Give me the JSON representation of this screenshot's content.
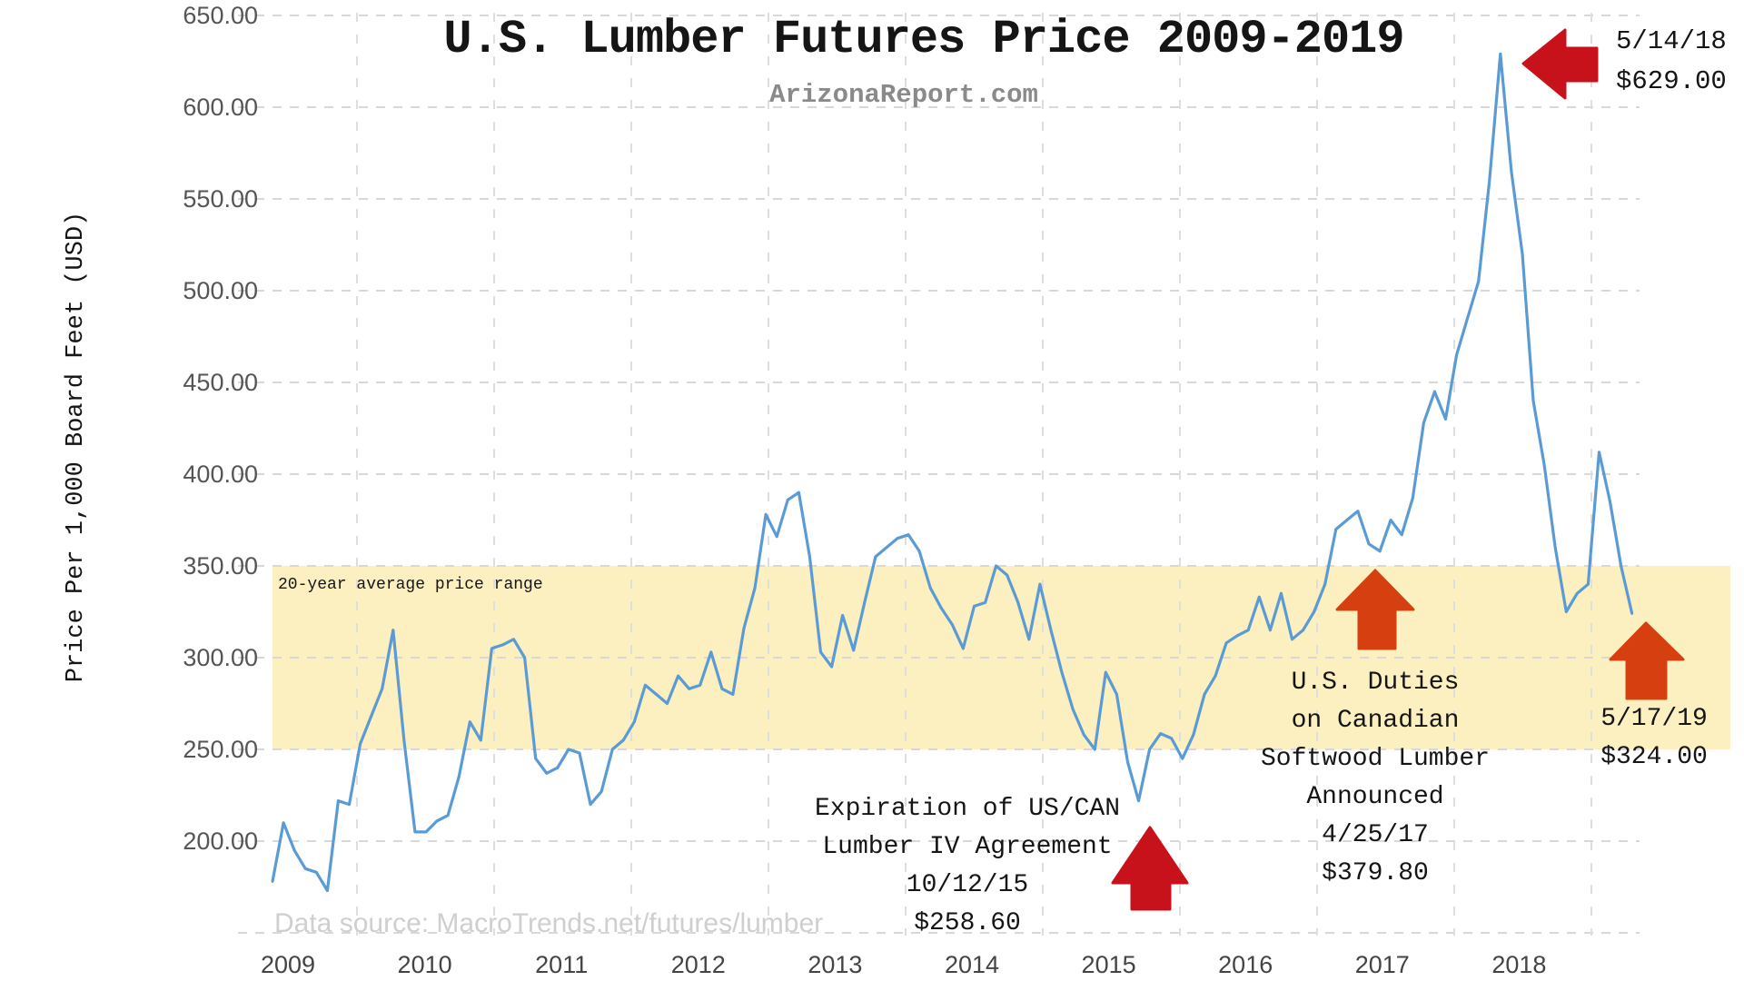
{
  "chart_data": {
    "type": "line",
    "title": "U.S. Lumber Futures Price 2009-2019",
    "subtitle": "ArizonaReport.com",
    "xlabel": "",
    "ylabel": "Price Per 1,000 Board Feet (USD)",
    "ylim": [
      150,
      650
    ],
    "grid": true,
    "y_ticks": [
      "650.00",
      "600.00",
      "550.00",
      "500.00",
      "450.00",
      "400.00",
      "350.00",
      "300.00",
      "250.00",
      "200.00"
    ],
    "x_ticks": [
      "2009",
      "2010",
      "2011",
      "2012",
      "2013",
      "2014",
      "2015",
      "2016",
      "2017",
      "2018"
    ],
    "source": "Data source: MacroTrends.net/futures/lumber",
    "band": {
      "label": "20-year average price range",
      "range": [
        250,
        350
      ],
      "color": "#fcf0c0"
    },
    "series": [
      {
        "color": "#5b9bd5",
        "x": [
          "2009-01",
          "2009-02",
          "2009-03",
          "2009-04",
          "2009-05",
          "2009-06",
          "2009-07",
          "2009-08",
          "2009-09",
          "2009-10",
          "2009-11",
          "2009-12",
          "2010-01",
          "2010-02",
          "2010-03",
          "2010-04",
          "2010-05",
          "2010-06",
          "2010-07",
          "2010-08",
          "2010-09",
          "2010-10",
          "2010-11",
          "2010-12",
          "2011-01",
          "2011-02",
          "2011-03",
          "2011-04",
          "2011-05",
          "2011-06",
          "2011-07",
          "2011-08",
          "2011-09",
          "2011-10",
          "2011-11",
          "2011-12",
          "2012-01",
          "2012-02",
          "2012-03",
          "2012-04",
          "2012-05",
          "2012-06",
          "2012-07",
          "2012-08",
          "2012-09",
          "2012-10",
          "2012-11",
          "2012-12",
          "2013-01",
          "2013-02",
          "2013-03",
          "2013-04",
          "2013-05",
          "2013-06",
          "2013-07",
          "2013-08",
          "2013-09",
          "2013-10",
          "2013-11",
          "2013-12",
          "2014-01",
          "2014-02",
          "2014-03",
          "2014-04",
          "2014-05",
          "2014-06",
          "2014-07",
          "2014-08",
          "2014-09",
          "2014-10",
          "2014-11",
          "2014-12",
          "2015-01",
          "2015-02",
          "2015-03",
          "2015-04",
          "2015-05",
          "2015-06",
          "2015-07",
          "2015-08",
          "2015-09",
          "2015-10",
          "2015-11",
          "2015-12",
          "2016-01",
          "2016-02",
          "2016-03",
          "2016-04",
          "2016-05",
          "2016-06",
          "2016-07",
          "2016-08",
          "2016-09",
          "2016-10",
          "2016-11",
          "2016-12",
          "2017-01",
          "2017-02",
          "2017-03",
          "2017-04",
          "2017-05",
          "2017-06",
          "2017-07",
          "2017-08",
          "2017-09",
          "2017-10",
          "2017-11",
          "2017-12",
          "2018-01",
          "2018-02",
          "2018-03",
          "2018-04",
          "2018-05",
          "2018-06",
          "2018-07",
          "2018-08",
          "2018-09",
          "2018-10",
          "2018-11",
          "2018-12",
          "2019-01",
          "2019-02",
          "2019-03",
          "2019-04",
          "2019-05"
        ],
        "y": [
          178,
          210,
          195,
          185,
          183,
          173,
          222,
          220,
          253,
          268,
          283,
          315,
          255,
          205,
          205,
          211,
          214,
          235,
          265,
          255,
          305,
          307,
          310,
          300,
          245,
          237,
          240,
          250,
          248,
          220,
          227,
          250,
          255,
          265,
          285,
          280,
          275,
          290,
          283,
          285,
          303,
          283,
          280,
          316,
          338,
          378,
          366,
          386,
          390,
          355,
          303,
          295,
          323,
          304,
          330,
          355,
          360,
          365,
          367,
          358,
          338,
          327,
          318,
          305,
          328,
          330,
          350,
          345,
          330,
          310,
          340,
          315,
          292,
          272,
          258,
          250,
          292,
          280,
          243,
          222,
          250,
          258.6,
          256,
          245,
          258,
          280,
          290,
          308,
          312,
          315,
          333,
          315,
          335,
          310,
          315,
          325,
          340,
          370,
          375,
          379.8,
          362,
          358,
          375,
          367,
          387,
          428,
          445,
          430,
          465,
          485,
          505,
          560,
          629,
          565,
          520,
          440,
          405,
          360,
          325,
          335,
          340,
          412,
          385,
          350,
          324
        ]
      }
    ],
    "annotations": {
      "peak": {
        "lines": [
          "5/14/18",
          "$629.00"
        ],
        "arrow_color": "#c8121b"
      },
      "expiration": {
        "lines": [
          "Expiration of US/CAN",
          "Lumber IV Agreement",
          "10/12/15",
          "$258.60"
        ],
        "arrow_color": "#c8121b"
      },
      "duties": {
        "lines": [
          "U.S. Duties",
          "on Canadian",
          "Softwood Lumber",
          "Announced",
          "4/25/17",
          "$379.80"
        ],
        "arrow_color": "#d63f10"
      },
      "latest": {
        "lines": [
          "5/17/19",
          "$324.00"
        ],
        "arrow_color": "#d63f10"
      }
    }
  }
}
